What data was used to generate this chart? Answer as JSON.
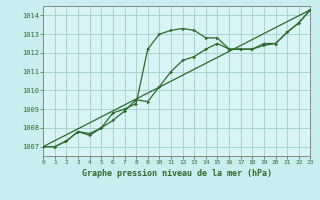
{
  "title": "Graphe pression niveau de la mer (hPa)",
  "background_color": "#c8eef0",
  "plot_bg_color": "#d8f4f4",
  "grid_color": "#a0cccc",
  "line_color": "#2d6a2d",
  "border_color": "#888888",
  "x_min": 0,
  "x_max": 23,
  "y_min": 1006.5,
  "y_max": 1014.5,
  "y_ticks": [
    1007,
    1008,
    1009,
    1010,
    1011,
    1012,
    1013,
    1014
  ],
  "x_ticks": [
    0,
    1,
    2,
    3,
    4,
    5,
    6,
    7,
    8,
    9,
    10,
    11,
    12,
    13,
    14,
    15,
    16,
    17,
    18,
    19,
    20,
    21,
    22,
    23
  ],
  "series1_x": [
    0,
    1,
    2,
    3,
    4,
    5,
    6,
    7,
    8,
    9,
    10,
    11,
    12,
    13,
    14,
    15,
    16,
    17,
    18,
    19,
    20,
    21,
    22,
    23
  ],
  "series1_y": [
    1007.0,
    1007.0,
    1007.3,
    1007.8,
    1007.6,
    1008.0,
    1008.8,
    1009.0,
    1009.3,
    1012.2,
    1013.0,
    1013.2,
    1013.3,
    1013.2,
    1012.8,
    1012.8,
    1012.2,
    1012.2,
    1012.2,
    1012.5,
    1012.5,
    1013.1,
    1013.6,
    1014.3
  ],
  "series2_x": [
    0,
    1,
    2,
    3,
    4,
    5,
    6,
    7,
    8,
    9,
    10,
    11,
    12,
    13,
    14,
    15,
    16,
    17,
    18,
    19,
    20,
    21,
    22,
    23
  ],
  "series2_y": [
    1007.0,
    1007.0,
    1007.3,
    1007.8,
    1007.7,
    1008.0,
    1008.4,
    1008.9,
    1009.5,
    1009.4,
    1010.2,
    1011.0,
    1011.6,
    1011.8,
    1012.2,
    1012.5,
    1012.2,
    1012.2,
    1012.2,
    1012.4,
    1012.5,
    1013.1,
    1013.6,
    1014.3
  ],
  "series3_x": [
    0,
    23
  ],
  "series3_y": [
    1007.0,
    1014.3
  ]
}
